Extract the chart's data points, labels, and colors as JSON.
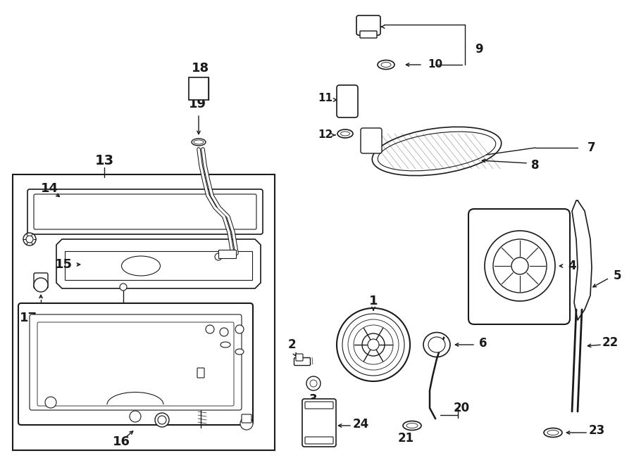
{
  "bg_color": "#ffffff",
  "line_color": "#1a1a1a",
  "lw": 1.0,
  "fig_w": 9.0,
  "fig_h": 6.61,
  "dpi": 100
}
